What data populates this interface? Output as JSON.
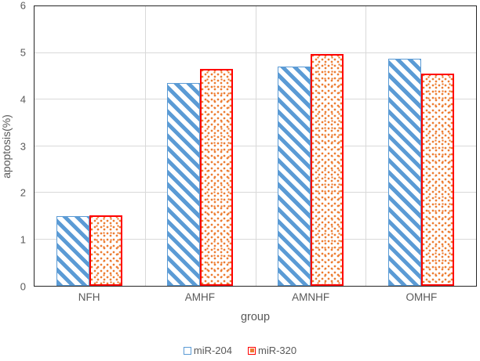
{
  "chart_data": {
    "type": "bar",
    "title": "",
    "xlabel": "group",
    "ylabel": "apoptosis(%)",
    "categories": [
      "NFH",
      "AMHF",
      "AMNHF",
      "OMHF"
    ],
    "series": [
      {
        "name": "miR-204",
        "values": [
          1.5,
          4.36,
          4.7,
          4.88
        ],
        "fill_pattern": "diagonal-stripes",
        "color": "#5B9BD5",
        "border_color": "#5B9BD5"
      },
      {
        "name": "miR-320",
        "values": [
          1.52,
          4.65,
          4.98,
          4.55
        ],
        "fill_pattern": "dots",
        "color": "#ED7D31",
        "border_color": "#FF0000"
      }
    ],
    "ylim": [
      0,
      6
    ],
    "yticks": [
      0,
      1,
      2,
      3,
      4,
      5,
      6
    ],
    "grid": "horizontal-gridlines-and-category-boundaries",
    "legend_position": "bottom-center"
  },
  "colors": {
    "text": "#595959",
    "gridline": "#D9D9D9",
    "plot_border": "#262626",
    "background": "#FFFFFF"
  }
}
